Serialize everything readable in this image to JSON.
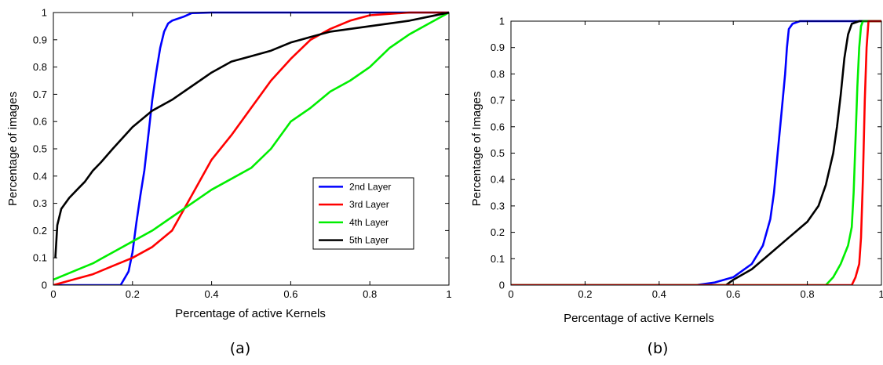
{
  "chart_data": [
    {
      "type": "line",
      "caption": "(a)",
      "xlabel": "Percentage of active Kernels",
      "ylabel": "Percentage of images",
      "xlim": [
        0,
        1
      ],
      "ylim": [
        0,
        1
      ],
      "xticks": [
        "0",
        "0.2",
        "0.4",
        "0.6",
        "0.8",
        "1"
      ],
      "yticks": [
        "0",
        "0.1",
        "0.2",
        "0.3",
        "0.4",
        "0.5",
        "0.6",
        "0.7",
        "0.8",
        "0.9",
        "1"
      ],
      "grid": false,
      "legend": "center-right",
      "series": [
        {
          "name": "2nd Layer",
          "color": "#0000ff",
          "x": [
            0,
            0.17,
            0.19,
            0.2,
            0.21,
            0.22,
            0.23,
            0.24,
            0.25,
            0.26,
            0.27,
            0.28,
            0.29,
            0.3,
            0.33,
            0.35,
            0.4,
            0.6,
            1.0
          ],
          "y": [
            0,
            0,
            0.05,
            0.12,
            0.23,
            0.33,
            0.42,
            0.55,
            0.68,
            0.78,
            0.87,
            0.93,
            0.96,
            0.97,
            0.985,
            0.998,
            1.0,
            1.0,
            1.0
          ]
        },
        {
          "name": "3rd Layer",
          "color": "#ff0000",
          "x": [
            0,
            0.05,
            0.1,
            0.15,
            0.2,
            0.25,
            0.3,
            0.35,
            0.4,
            0.45,
            0.5,
            0.55,
            0.6,
            0.65,
            0.7,
            0.75,
            0.8,
            0.85,
            0.9,
            0.95,
            1.0
          ],
          "y": [
            0,
            0.02,
            0.04,
            0.07,
            0.1,
            0.14,
            0.2,
            0.33,
            0.46,
            0.55,
            0.65,
            0.75,
            0.83,
            0.9,
            0.94,
            0.97,
            0.99,
            0.995,
            1.0,
            1.0,
            1.0
          ]
        },
        {
          "name": "4th Layer",
          "color": "#00ee00",
          "x": [
            0,
            0.05,
            0.1,
            0.15,
            0.2,
            0.25,
            0.3,
            0.35,
            0.4,
            0.45,
            0.5,
            0.55,
            0.6,
            0.65,
            0.7,
            0.75,
            0.8,
            0.85,
            0.9,
            0.95,
            1.0
          ],
          "y": [
            0.02,
            0.05,
            0.08,
            0.12,
            0.16,
            0.2,
            0.25,
            0.3,
            0.35,
            0.39,
            0.43,
            0.5,
            0.6,
            0.65,
            0.71,
            0.75,
            0.8,
            0.87,
            0.92,
            0.96,
            1.0
          ]
        },
        {
          "name": "5th Layer",
          "color": "#000000",
          "x": [
            0.005,
            0.01,
            0.02,
            0.04,
            0.06,
            0.08,
            0.1,
            0.12,
            0.15,
            0.2,
            0.25,
            0.3,
            0.35,
            0.4,
            0.45,
            0.5,
            0.55,
            0.6,
            0.65,
            0.7,
            0.75,
            0.8,
            0.85,
            0.9,
            0.95,
            1.0
          ],
          "y": [
            0.1,
            0.22,
            0.28,
            0.32,
            0.35,
            0.38,
            0.42,
            0.45,
            0.5,
            0.58,
            0.64,
            0.68,
            0.73,
            0.78,
            0.82,
            0.84,
            0.86,
            0.89,
            0.91,
            0.93,
            0.94,
            0.95,
            0.96,
            0.97,
            0.985,
            1.0
          ]
        }
      ]
    },
    {
      "type": "line",
      "caption": "(b)",
      "xlabel": "Percentage of active Kernels",
      "ylabel": "Percentage of Images",
      "xlim": [
        0,
        1
      ],
      "ylim": [
        0,
        1
      ],
      "xticks": [
        "0",
        "0.2",
        "0.4",
        "0.6",
        "0.8",
        "1"
      ],
      "yticks": [
        "0",
        "0.1",
        "0.2",
        "0.3",
        "0.4",
        "0.5",
        "0.6",
        "0.7",
        "0.8",
        "0.9",
        "1"
      ],
      "grid": false,
      "series": [
        {
          "color": "#0000ff",
          "x": [
            0,
            0.5,
            0.55,
            0.6,
            0.65,
            0.68,
            0.7,
            0.71,
            0.72,
            0.73,
            0.74,
            0.745,
            0.75,
            0.76,
            0.78,
            0.8,
            1.0
          ],
          "y": [
            0,
            0,
            0.01,
            0.03,
            0.08,
            0.15,
            0.25,
            0.35,
            0.5,
            0.65,
            0.8,
            0.9,
            0.97,
            0.99,
            1.0,
            1.0,
            1.0
          ]
        },
        {
          "color": "#000000",
          "x": [
            0,
            0.58,
            0.6,
            0.65,
            0.7,
            0.75,
            0.8,
            0.83,
            0.85,
            0.87,
            0.88,
            0.89,
            0.9,
            0.91,
            0.92,
            0.94,
            1.0
          ],
          "y": [
            0,
            0,
            0.02,
            0.06,
            0.12,
            0.18,
            0.24,
            0.3,
            0.38,
            0.5,
            0.6,
            0.72,
            0.86,
            0.95,
            0.99,
            1.0,
            1.0
          ]
        },
        {
          "color": "#00ee00",
          "x": [
            0,
            0.85,
            0.87,
            0.89,
            0.91,
            0.92,
            0.925,
            0.93,
            0.935,
            0.94,
            0.945,
            0.95,
            1.0
          ],
          "y": [
            0,
            0,
            0.03,
            0.08,
            0.15,
            0.22,
            0.35,
            0.55,
            0.75,
            0.9,
            0.98,
            1.0,
            1.0
          ]
        },
        {
          "color": "#ff0000",
          "x": [
            0,
            0.92,
            0.93,
            0.94,
            0.945,
            0.95,
            0.955,
            0.96,
            0.965,
            1.0
          ],
          "y": [
            0,
            0,
            0.03,
            0.08,
            0.18,
            0.4,
            0.7,
            0.9,
            1.0,
            1.0
          ]
        }
      ]
    }
  ]
}
